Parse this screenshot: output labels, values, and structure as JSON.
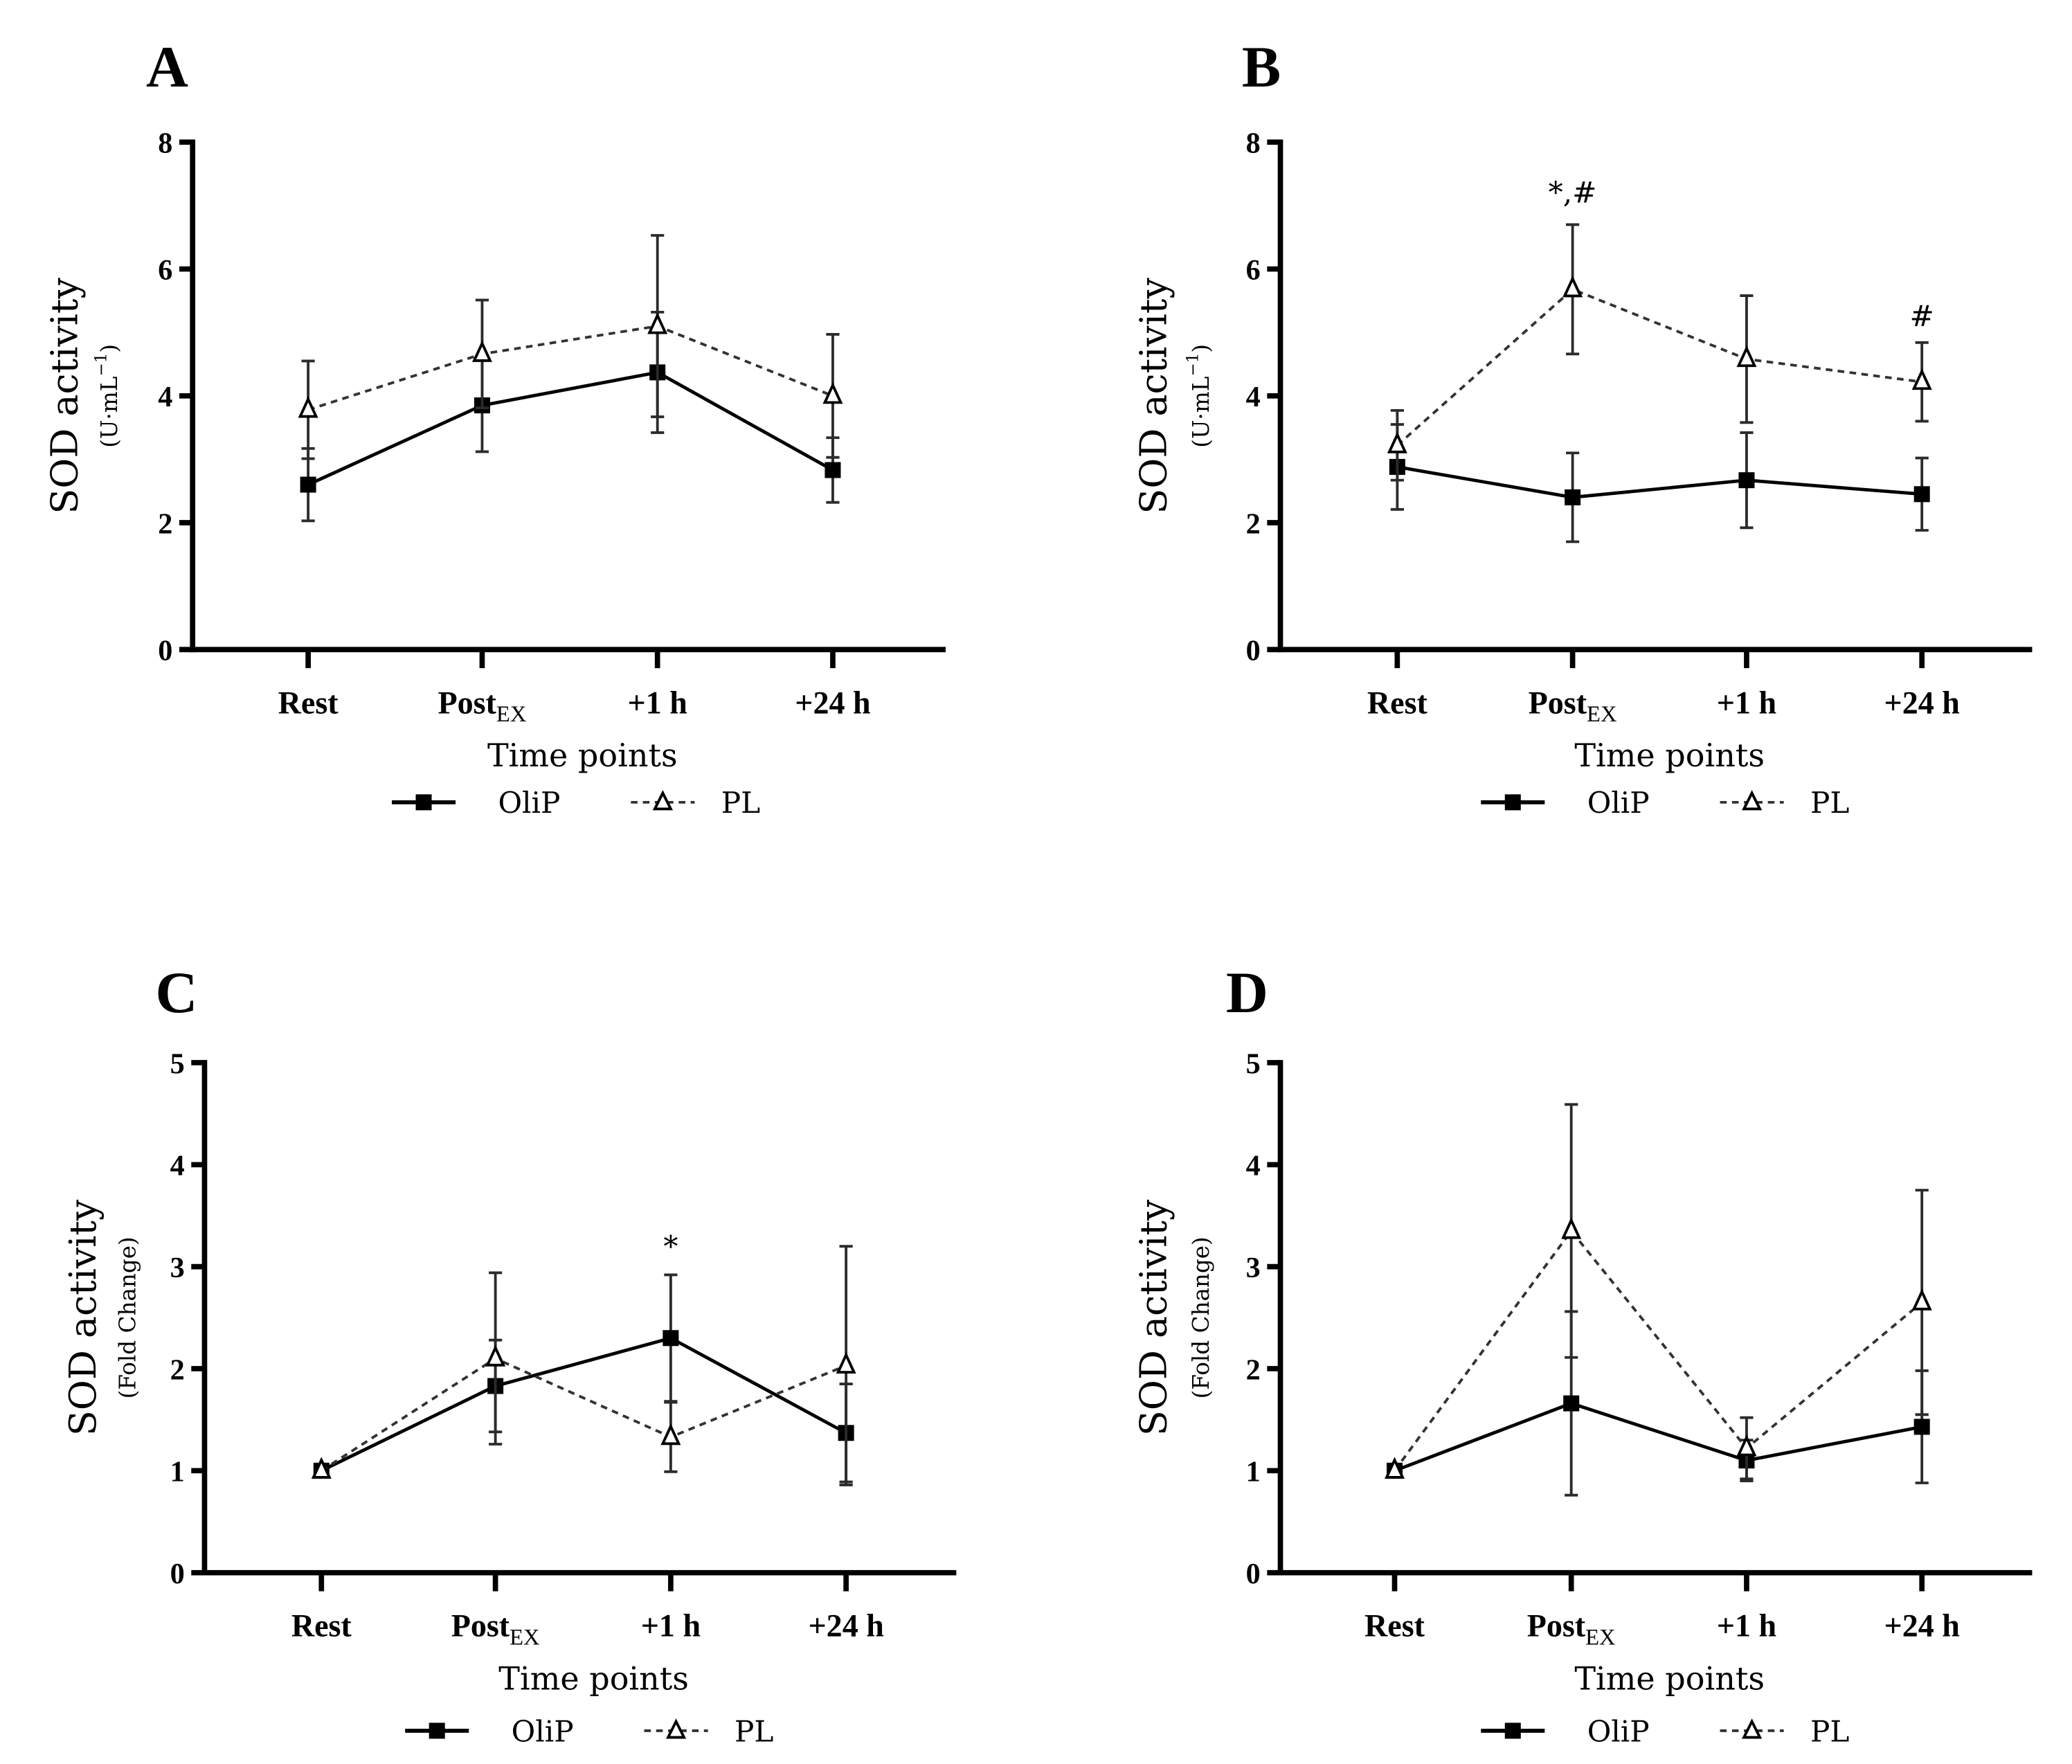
{
  "chart_data": [
    {
      "type": "line",
      "panel": "A",
      "categories": [
        "Rest",
        "Post",
        "+1 h",
        "+24 h"
      ],
      "category_subscripts": [
        "",
        "EX",
        "",
        ""
      ],
      "xlabel": "Time points",
      "ylabel": "SOD activity",
      "ylabel_unit": "(U·mL",
      "ylabel_unit_sup": "−1",
      "ylim": [
        0,
        8
      ],
      "yticks": [
        0,
        2,
        4,
        6,
        8
      ],
      "series": [
        {
          "name": "OliP",
          "marker": "square",
          "line": "solid",
          "values": [
            2.6,
            3.85,
            4.37,
            2.83
          ],
          "errors": [
            0.57,
            0.73,
            0.95,
            0.51
          ]
        },
        {
          "name": "PL",
          "marker": "triangle-open",
          "line": "dashed",
          "values": [
            3.78,
            4.66,
            5.1,
            4.0
          ],
          "errors": [
            0.77,
            0.85,
            1.43,
            0.97
          ]
        }
      ],
      "annotations": []
    },
    {
      "type": "line",
      "panel": "B",
      "categories": [
        "Rest",
        "Post",
        "+1 h",
        "+24 h"
      ],
      "category_subscripts": [
        "",
        "EX",
        "",
        ""
      ],
      "xlabel": "Time points",
      "ylabel": "SOD activity",
      "ylabel_unit": "(U·mL",
      "ylabel_unit_sup": "−1",
      "ylim": [
        0,
        8
      ],
      "yticks": [
        0,
        2,
        4,
        6,
        8
      ],
      "series": [
        {
          "name": "OliP",
          "marker": "square",
          "line": "solid",
          "values": [
            2.88,
            2.4,
            2.67,
            2.45
          ],
          "errors": [
            0.67,
            0.7,
            0.75,
            0.57
          ]
        },
        {
          "name": "PL",
          "marker": "triangle-open",
          "line": "dashed",
          "values": [
            3.22,
            5.68,
            4.58,
            4.22
          ],
          "errors": [
            0.55,
            1.02,
            1.0,
            0.62
          ]
        }
      ],
      "annotations": [
        {
          "category": "Post",
          "y": 7.05,
          "text": "*,#"
        },
        {
          "category": "+24 h",
          "y": 5.1,
          "text": "#"
        }
      ]
    },
    {
      "type": "line",
      "panel": "C",
      "categories": [
        "Rest",
        "Post",
        "+1 h",
        "+24 h"
      ],
      "category_subscripts": [
        "",
        "EX",
        "",
        ""
      ],
      "xlabel": "Time points",
      "ylabel": "SOD activity",
      "ylabel_unit": "(Fold Change)",
      "ylabel_unit_sup": "",
      "ylim": [
        0,
        5
      ],
      "yticks": [
        0,
        1,
        2,
        3,
        4,
        5
      ],
      "series": [
        {
          "name": "OliP",
          "marker": "square",
          "line": "solid",
          "values": [
            1.0,
            1.83,
            2.3,
            1.37
          ],
          "errors": [
            0,
            0.45,
            0.62,
            0.48
          ]
        },
        {
          "name": "PL",
          "marker": "triangle-open",
          "line": "dashed",
          "values": [
            1.0,
            2.1,
            1.33,
            2.03
          ],
          "errors": [
            0,
            0.84,
            0.34,
            1.17
          ]
        }
      ],
      "annotations": [
        {
          "category": "+1 h",
          "y": 3.1,
          "text": "*"
        }
      ]
    },
    {
      "type": "line",
      "panel": "D",
      "categories": [
        "Rest",
        "Post",
        "+1 h",
        "+24 h"
      ],
      "category_subscripts": [
        "",
        "EX",
        "",
        ""
      ],
      "xlabel": "Time points",
      "ylabel": "SOD activity",
      "ylabel_unit": "(Fold Change)",
      "ylabel_unit_sup": "",
      "ylim": [
        0,
        5
      ],
      "yticks": [
        0,
        1,
        2,
        3,
        4,
        5
      ],
      "series": [
        {
          "name": "OliP",
          "marker": "square",
          "line": "solid",
          "values": [
            1.0,
            1.66,
            1.1,
            1.43
          ],
          "errors": [
            0,
            0.9,
            0.2,
            0.55
          ]
        },
        {
          "name": "PL",
          "marker": "triangle-open",
          "line": "dashed",
          "values": [
            1.0,
            3.35,
            1.22,
            2.65
          ],
          "errors": [
            0,
            1.24,
            0.3,
            1.1
          ]
        }
      ],
      "annotations": []
    }
  ],
  "colors": {
    "line": "#000000",
    "errorbar": "#2b2b2b"
  }
}
